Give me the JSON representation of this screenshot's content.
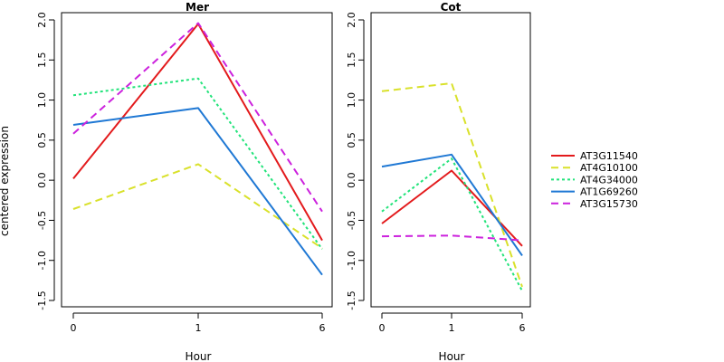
{
  "chart_data": {
    "type": "line",
    "ylabel": "centered expression",
    "xlabel": "Hour",
    "x": [
      0,
      1,
      6
    ],
    "y_ticks": [
      -1.5,
      -1.0,
      -0.5,
      0.0,
      0.5,
      1.0,
      1.5,
      2.0
    ],
    "y_tick_labels": [
      "-1.5",
      "-1.0",
      "-0.5",
      "0.0",
      "0.5",
      "1.0",
      "1.5",
      "2.0"
    ],
    "x_tick_labels": [
      "0",
      "1",
      "6"
    ],
    "ylim": [
      -1.5,
      2.0
    ],
    "grid": false,
    "legend_position": "right",
    "styles": [
      {
        "color": "#e31a1c",
        "dash": "solid"
      },
      {
        "color": "#d9e12b",
        "dash": "dashed"
      },
      {
        "color": "#22e37a",
        "dash": "dotted"
      },
      {
        "color": "#1f78d4",
        "dash": "solid"
      },
      {
        "color": "#cc22dd",
        "dash": "dashed"
      }
    ],
    "series_names": [
      "AT3G11540",
      "AT4G10100",
      "AT4G34000",
      "AT1G69260",
      "AT3G15730"
    ],
    "panels": [
      {
        "title": "Mer",
        "series": [
          {
            "name": "AT3G11540",
            "values": [
              0.02,
              1.95,
              -0.75
            ]
          },
          {
            "name": "AT4G10100",
            "values": [
              -0.36,
              0.2,
              -0.85
            ]
          },
          {
            "name": "AT4G34000",
            "values": [
              1.06,
              1.27,
              -0.86
            ]
          },
          {
            "name": "AT1G69260",
            "values": [
              0.69,
              0.9,
              -1.18
            ]
          },
          {
            "name": "AT3G15730",
            "values": [
              0.58,
              1.96,
              -0.39
            ]
          }
        ]
      },
      {
        "title": "Cot",
        "series": [
          {
            "name": "AT3G11540",
            "values": [
              -0.54,
              0.12,
              -0.82
            ]
          },
          {
            "name": "AT4G10100",
            "values": [
              1.11,
              1.21,
              -1.33
            ]
          },
          {
            "name": "AT4G34000",
            "values": [
              -0.39,
              0.27,
              -1.38
            ]
          },
          {
            "name": "AT1G69260",
            "values": [
              0.17,
              0.32,
              -0.94
            ]
          },
          {
            "name": "AT3G15730",
            "values": [
              -0.7,
              -0.69,
              -0.75
            ]
          }
        ]
      }
    ]
  }
}
